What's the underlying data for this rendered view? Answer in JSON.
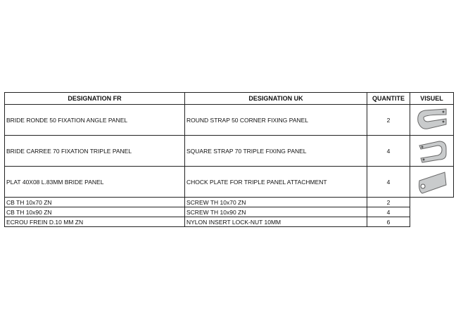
{
  "headers": {
    "fr": "DESIGNATION FR",
    "uk": "DESIGNATION UK",
    "qty": "QUANTITE",
    "visual": "VISUEL"
  },
  "rows": [
    {
      "fr": "BRIDE RONDE 50 FIXATION ANGLE PANEL",
      "uk": "ROUND STRAP 50 CORNER FIXING PANEL",
      "qty": "2",
      "icon": "round-strap-icon"
    },
    {
      "fr": "BRIDE CARREE 70 FIXATION TRIPLE PANEL",
      "uk": "SQUARE STRAP 70 TRIPLE FIXING PANEL",
      "qty": "4",
      "icon": "square-strap-icon"
    },
    {
      "fr": "PLAT 40X08 L.83MM BRIDE PANEL",
      "uk": "CHOCK PLATE FOR TRIPLE PANEL ATTACHMENT",
      "qty": "4",
      "icon": "chock-plate-icon"
    },
    {
      "fr": "CB TH 10x70 ZN",
      "uk": "SCREW TH 10x70 ZN",
      "qty": "2"
    },
    {
      "fr": "CB TH 10x90 ZN",
      "uk": "SCREW TH 10x90 ZN",
      "qty": "4"
    },
    {
      "fr": "ECROU FREIN D.10 MM ZN",
      "uk": "NYLON INSERT LOCK-NUT 10MM",
      "qty": "6"
    }
  ]
}
